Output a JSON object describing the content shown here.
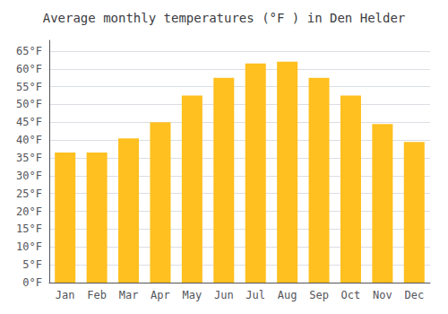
{
  "chart_data": {
    "type": "bar",
    "title": "Average monthly temperatures (°F ) in Den Helder",
    "categories": [
      "Jan",
      "Feb",
      "Mar",
      "Apr",
      "May",
      "Jun",
      "Jul",
      "Aug",
      "Sep",
      "Oct",
      "Nov",
      "Dec"
    ],
    "values": [
      36.5,
      36.5,
      40.5,
      45,
      52.5,
      57.5,
      61.5,
      62,
      57.5,
      52.5,
      44.5,
      39.5
    ],
    "color": "#FFC020",
    "ylim": [
      0,
      68
    ],
    "yticks": [
      {
        "value": 0,
        "label": "0°F"
      },
      {
        "value": 5,
        "label": "5°F"
      },
      {
        "value": 10,
        "label": "10°F"
      },
      {
        "value": 15,
        "label": "15°F"
      },
      {
        "value": 20,
        "label": "20°F"
      },
      {
        "value": 25,
        "label": "25°F"
      },
      {
        "value": 30,
        "label": "30°F"
      },
      {
        "value": 35,
        "label": "35°F"
      },
      {
        "value": 40,
        "label": "40°F"
      },
      {
        "value": 45,
        "label": "45°F"
      },
      {
        "value": 50,
        "label": "50°F"
      },
      {
        "value": 55,
        "label": "55°F"
      },
      {
        "value": 60,
        "label": "60°F"
      },
      {
        "value": 65,
        "label": "65°F"
      }
    ],
    "grid": true
  }
}
